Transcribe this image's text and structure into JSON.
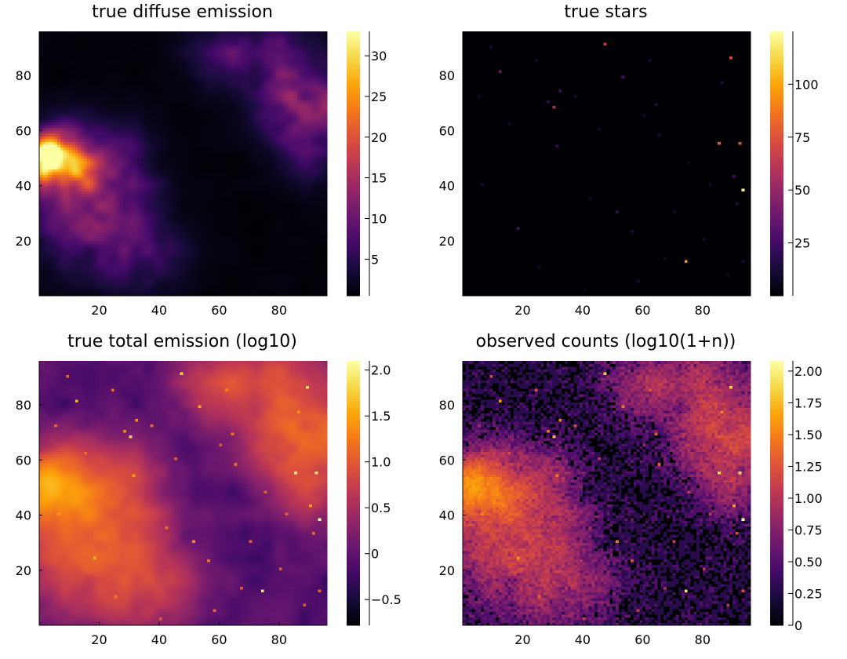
{
  "chart_data": [
    {
      "type": "heatmap",
      "title": "true diffuse emission",
      "xlabel": "",
      "ylabel": "",
      "xlim": [
        0,
        96
      ],
      "ylim": [
        0,
        96
      ],
      "xticks": [
        20,
        40,
        60,
        80
      ],
      "yticks": [
        20,
        40,
        60,
        80
      ],
      "xtick_labels": [
        "20",
        "40",
        "60",
        "80"
      ],
      "ytick_labels": [
        "20",
        "40",
        "60",
        "80"
      ],
      "colormap": "inferno",
      "colorbar": {
        "range": [
          0.5,
          33
        ],
        "ticks": [
          5,
          10,
          15,
          20,
          25,
          30
        ],
        "labels": [
          "5",
          "10",
          "15",
          "20",
          "25",
          "30"
        ]
      },
      "grid": false,
      "features": {
        "blobs": [
          {
            "x": 5,
            "y": 50,
            "peak": 33,
            "width": 6
          },
          {
            "x": 18,
            "y": 45,
            "peak": 12,
            "width": 12
          },
          {
            "x": 15,
            "y": 25,
            "peak": 8,
            "width": 12
          },
          {
            "x": 35,
            "y": 15,
            "peak": 5,
            "width": 10
          },
          {
            "x": 88,
            "y": 70,
            "peak": 12,
            "width": 10
          },
          {
            "x": 80,
            "y": 88,
            "peak": 7,
            "width": 8
          },
          {
            "x": 60,
            "y": 88,
            "peak": 6,
            "width": 8
          },
          {
            "x": 92,
            "y": 50,
            "peak": 4,
            "width": 8
          }
        ],
        "background": 0.8
      }
    },
    {
      "type": "heatmap",
      "title": "true stars",
      "xlabel": "",
      "ylabel": "",
      "xlim": [
        0,
        96
      ],
      "ylim": [
        0,
        96
      ],
      "xticks": [
        20,
        40,
        60,
        80
      ],
      "yticks": [
        20,
        40,
        60,
        80
      ],
      "xtick_labels": [
        "20",
        "40",
        "60",
        "80"
      ],
      "ytick_labels": [
        "20",
        "40",
        "60",
        "80"
      ],
      "colormap": "inferno",
      "colorbar": {
        "range": [
          0,
          125
        ],
        "ticks": [
          25,
          50,
          75,
          100
        ],
        "labels": [
          "25",
          "50",
          "75",
          "100"
        ]
      },
      "grid": false,
      "stars": [
        {
          "x": 93,
          "y": 38,
          "flux": 122
        },
        {
          "x": 85,
          "y": 55,
          "flux": 78
        },
        {
          "x": 92,
          "y": 55,
          "flux": 76
        },
        {
          "x": 47,
          "y": 91,
          "flux": 62
        },
        {
          "x": 89,
          "y": 86,
          "flux": 68
        },
        {
          "x": 30,
          "y": 68,
          "flux": 58
        },
        {
          "x": 74,
          "y": 12,
          "flux": 95
        },
        {
          "x": 12,
          "y": 81,
          "flux": 40
        },
        {
          "x": 53,
          "y": 79,
          "flux": 28
        },
        {
          "x": 32,
          "y": 74,
          "flux": 24
        },
        {
          "x": 31,
          "y": 54,
          "flux": 22
        },
        {
          "x": 18,
          "y": 24,
          "flux": 28
        },
        {
          "x": 90,
          "y": 43,
          "flux": 26
        },
        {
          "x": 51,
          "y": 30,
          "flux": 22
        },
        {
          "x": 86,
          "y": 77,
          "flux": 18
        },
        {
          "x": 28,
          "y": 70,
          "flux": 20
        },
        {
          "x": 91,
          "y": 33,
          "flux": 15
        },
        {
          "x": 64,
          "y": 69,
          "flux": 14
        },
        {
          "x": 56,
          "y": 23,
          "flux": 14
        },
        {
          "x": 62,
          "y": 85,
          "flux": 12
        },
        {
          "x": 9,
          "y": 90,
          "flux": 14
        },
        {
          "x": 37,
          "y": 72,
          "flux": 13
        },
        {
          "x": 24,
          "y": 85,
          "flux": 12
        },
        {
          "x": 93,
          "y": 12,
          "flux": 13
        },
        {
          "x": 6,
          "y": 40,
          "flux": 12
        },
        {
          "x": 58,
          "y": 5,
          "flux": 12
        },
        {
          "x": 65,
          "y": 58,
          "flux": 12
        },
        {
          "x": 80,
          "y": 20,
          "flux": 11
        },
        {
          "x": 42,
          "y": 35,
          "flux": 10
        },
        {
          "x": 70,
          "y": 30,
          "flux": 10
        },
        {
          "x": 15,
          "y": 62,
          "flux": 10
        },
        {
          "x": 45,
          "y": 60,
          "flux": 9
        },
        {
          "x": 75,
          "y": 48,
          "flux": 9
        },
        {
          "x": 25,
          "y": 10,
          "flux": 9
        },
        {
          "x": 88,
          "y": 7,
          "flux": 10
        },
        {
          "x": 40,
          "y": 2,
          "flux": 9
        },
        {
          "x": 67,
          "y": 13,
          "flux": 9
        },
        {
          "x": 5,
          "y": 72,
          "flux": 10
        },
        {
          "x": 82,
          "y": 40,
          "flux": 9
        },
        {
          "x": 60,
          "y": 65,
          "flux": 10
        }
      ]
    },
    {
      "type": "heatmap",
      "title": "true total emission (log10)",
      "xlabel": "",
      "ylabel": "",
      "xlim": [
        0,
        96
      ],
      "ylim": [
        0,
        96
      ],
      "xticks": [
        20,
        40,
        60,
        80
      ],
      "yticks": [
        20,
        40,
        60,
        80
      ],
      "xtick_labels": [
        "20",
        "40",
        "60",
        "80"
      ],
      "ytick_labels": [
        "20",
        "40",
        "60",
        "80"
      ],
      "colormap": "inferno",
      "colorbar": {
        "range": [
          -0.78,
          2.1
        ],
        "ticks": [
          -0.5,
          0,
          0.5,
          1.0,
          1.5,
          2.0
        ],
        "labels": [
          "−0.5",
          "0",
          "0.5",
          "1.0",
          "1.5",
          "2.0"
        ]
      },
      "grid": false
    },
    {
      "type": "heatmap",
      "title": "observed counts (log10(1+n))",
      "xlabel": "",
      "ylabel": "",
      "xlim": [
        0,
        96
      ],
      "ylim": [
        0,
        96
      ],
      "xticks": [
        20,
        40,
        60,
        80
      ],
      "yticks": [
        20,
        40,
        60,
        80
      ],
      "xtick_labels": [
        "20",
        "40",
        "60",
        "80"
      ],
      "ytick_labels": [
        "20",
        "40",
        "60",
        "80"
      ],
      "colormap": "inferno",
      "colorbar": {
        "range": [
          0,
          2.08
        ],
        "ticks": [
          0,
          0.25,
          0.5,
          0.75,
          1.0,
          1.25,
          1.5,
          1.75,
          2.0
        ],
        "labels": [
          "0",
          "0.25",
          "0.50",
          "0.75",
          "1.00",
          "1.25",
          "1.50",
          "1.75",
          "2.00"
        ]
      },
      "grid": false
    }
  ]
}
